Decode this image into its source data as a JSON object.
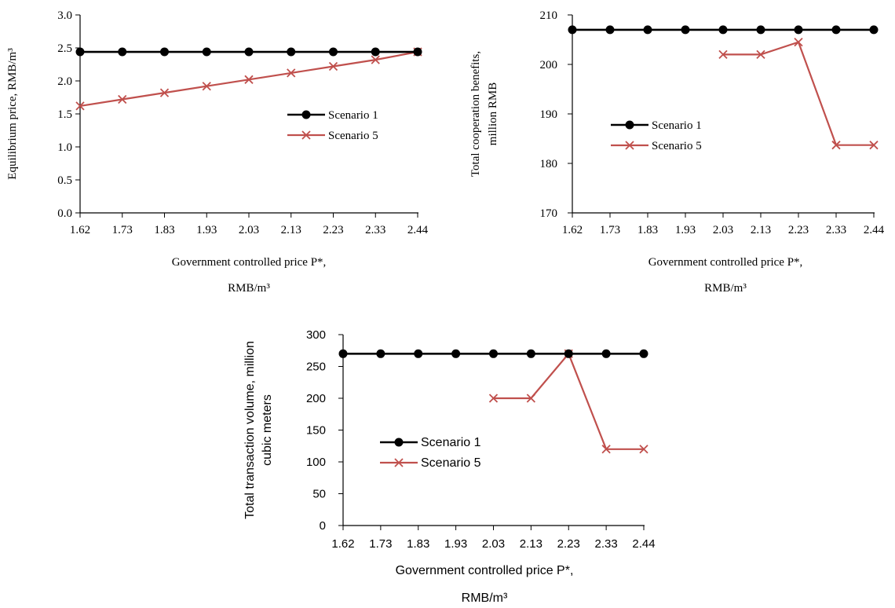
{
  "colors": {
    "scenario1": "#000000",
    "scenario5": "#c0504d"
  },
  "chart_data": [
    {
      "type": "line",
      "categories": [
        "1.62",
        "1.73",
        "1.83",
        "1.93",
        "2.03",
        "2.13",
        "2.23",
        "2.33",
        "2.44"
      ],
      "series": [
        {
          "name": "Scenario 1",
          "values": [
            2.44,
            2.44,
            2.44,
            2.44,
            2.44,
            2.44,
            2.44,
            2.44,
            2.44
          ]
        },
        {
          "name": "Scenario 5",
          "values": [
            1.62,
            1.72,
            1.82,
            1.92,
            2.02,
            2.12,
            2.22,
            2.32,
            2.44
          ]
        }
      ],
      "yticks": [
        "0.0",
        "0.5",
        "1.0",
        "1.5",
        "2.0",
        "2.5",
        "3.0"
      ],
      "ylim": [
        0,
        3
      ],
      "ylabel": "Equilibrium price, RMB/m³",
      "xlabel_line1": "Government controlled price P*,",
      "xlabel_line2": "RMB/m³",
      "legend": [
        "Scenario 1",
        "Scenario 5"
      ],
      "legend_placement": "center-right"
    },
    {
      "type": "line",
      "categories": [
        "1.62",
        "1.73",
        "1.83",
        "1.93",
        "2.03",
        "2.13",
        "2.23",
        "2.33",
        "2.44"
      ],
      "series": [
        {
          "name": "Scenario 1",
          "values": [
            207,
            207,
            207,
            207,
            207,
            207,
            207,
            207,
            207
          ]
        },
        {
          "name": "Scenario 5",
          "values": [
            null,
            null,
            null,
            null,
            202,
            202,
            204.5,
            183.7,
            183.7
          ]
        }
      ],
      "yticks": [
        "170",
        "180",
        "190",
        "200",
        "210"
      ],
      "ylim": [
        170,
        210
      ],
      "ylabel_line1": "Total cooperation benefits,",
      "ylabel_line2": "million RMB",
      "xlabel_line1": "Government controlled price P*,",
      "xlabel_line2": "RMB/m³",
      "legend": [
        "Scenario 1",
        "Scenario 5"
      ],
      "legend_placement": "center-left"
    },
    {
      "type": "line",
      "categories": [
        "1.62",
        "1.73",
        "1.83",
        "1.93",
        "2.03",
        "2.13",
        "2.23",
        "2.33",
        "2.44"
      ],
      "series": [
        {
          "name": "Scenario 1",
          "values": [
            270,
            270,
            270,
            270,
            270,
            270,
            270,
            270,
            270
          ]
        },
        {
          "name": "Scenario 5",
          "values": [
            null,
            null,
            null,
            null,
            200,
            200,
            270,
            120,
            120
          ]
        }
      ],
      "yticks": [
        "0",
        "50",
        "100",
        "150",
        "200",
        "250",
        "300"
      ],
      "ylim": [
        0,
        300
      ],
      "ylabel_line1": "Total transaction volume, million",
      "ylabel_line2": "cubic meters",
      "xlabel_line1": "Government controlled price P*,",
      "xlabel_line2": "RMB/m³",
      "legend": [
        "Scenario 1",
        "Scenario 5"
      ],
      "legend_placement": "center-left"
    }
  ]
}
